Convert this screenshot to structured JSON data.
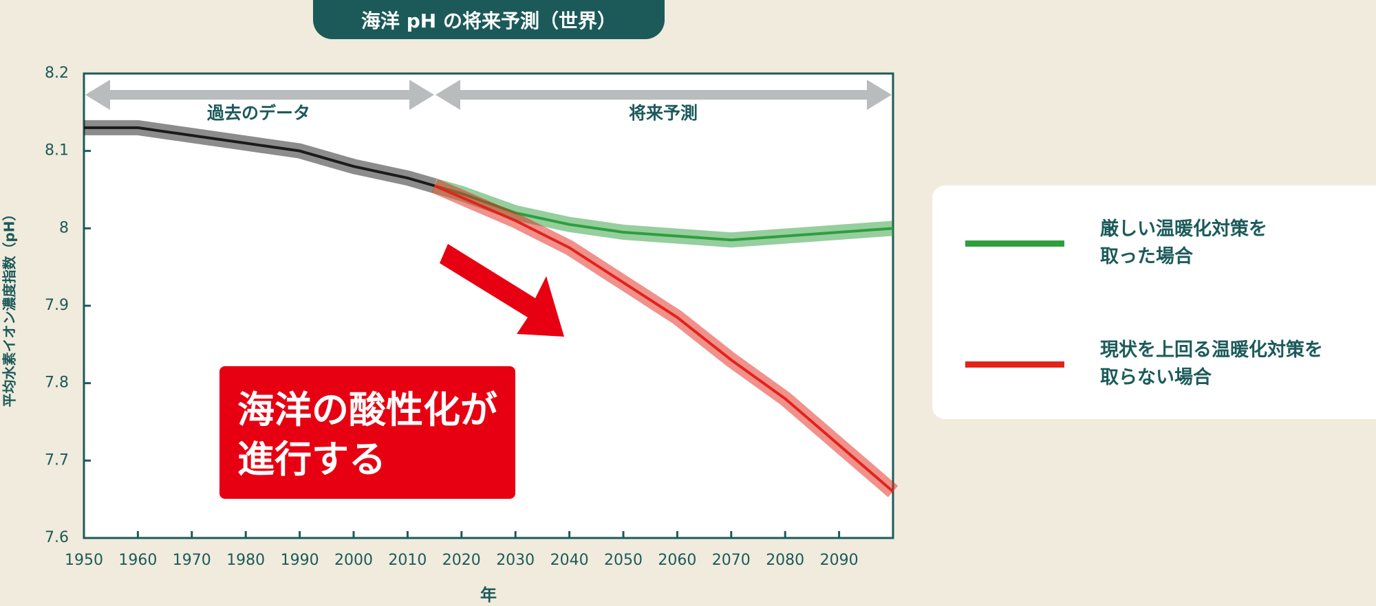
{
  "chart_data": {
    "type": "line",
    "title": "海洋 pH の将来予測（世界）",
    "x_label": "年",
    "y_label": "平均水素イオン濃度指数（pH）",
    "annotations": {
      "past": "過去のデータ",
      "future": "将来予測",
      "callout": "海洋の酸性化が\n進行する"
    },
    "xlim": [
      1950,
      2100
    ],
    "xticks": [
      1950,
      1960,
      1970,
      1980,
      1990,
      2000,
      2010,
      2020,
      2030,
      2040,
      2050,
      2060,
      2070,
      2080,
      2090
    ],
    "ylim": [
      7.6,
      8.2
    ],
    "yticks": [
      7.6,
      7.7,
      7.8,
      7.9,
      8,
      8.1,
      8.2
    ],
    "series": [
      {
        "color": "#1a1a1a",
        "x": [
          1950,
          1960,
          1970,
          1980,
          1990,
          2000,
          2010,
          2015
        ],
        "values": [
          8.13,
          8.13,
          8.12,
          8.11,
          8.1,
          8.08,
          8.065,
          8.055
        ]
      },
      {
        "name": "厳しい温暖化対策を\n取った場合",
        "color": "#2e9e3e",
        "x": [
          2015,
          2020,
          2030,
          2040,
          2050,
          2060,
          2070,
          2080,
          2090,
          2100
        ],
        "values": [
          8.055,
          8.045,
          8.02,
          8.005,
          7.995,
          7.99,
          7.985,
          7.99,
          7.995,
          8.0
        ]
      },
      {
        "name": "現状を上回る温暖化対策を\n取らない場合",
        "color": "#e2231a",
        "x": [
          2015,
          2020,
          2030,
          2040,
          2050,
          2060,
          2070,
          2080,
          2090,
          2100
        ],
        "values": [
          8.055,
          8.04,
          8.01,
          7.975,
          7.93,
          7.885,
          7.83,
          7.78,
          7.72,
          7.66
        ]
      }
    ]
  }
}
